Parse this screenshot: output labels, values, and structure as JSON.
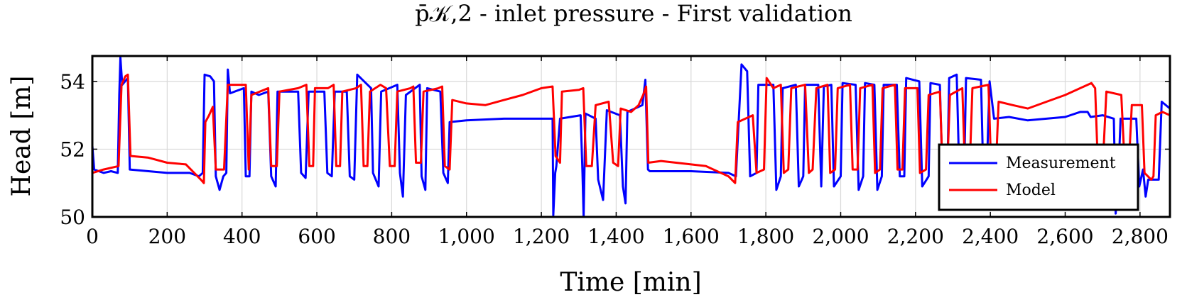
{
  "chart_data": {
    "type": "line",
    "title": "p̄𝒦,2 - inlet pressure - First validation",
    "xlabel": "Time [min]",
    "ylabel": "Head [m]",
    "xlim": [
      0,
      2880
    ],
    "ylim": [
      50,
      54.75
    ],
    "xticks": [
      0,
      200,
      400,
      600,
      800,
      1000,
      1200,
      1400,
      1600,
      1800,
      2000,
      2200,
      2400,
      2600,
      2800
    ],
    "xtick_labels": [
      "0",
      "200",
      "400",
      "600",
      "800",
      "1,000",
      "1,200",
      "1,400",
      "1,600",
      "1,800",
      "2,000",
      "2,200",
      "2,400",
      "2,600",
      "2,800"
    ],
    "yticks": [
      50,
      52,
      54
    ],
    "ytick_labels": [
      "50",
      "52",
      "54"
    ],
    "grid": true,
    "legend_position": "lower-right",
    "series": [
      {
        "name": "Measurement",
        "color": "#0000ff",
        "points": [
          [
            0,
            52.1
          ],
          [
            5,
            51.4
          ],
          [
            30,
            51.3
          ],
          [
            50,
            51.35
          ],
          [
            68,
            51.3
          ],
          [
            72,
            53.6
          ],
          [
            75,
            54.7
          ],
          [
            80,
            53.9
          ],
          [
            95,
            54.1
          ],
          [
            100,
            51.4
          ],
          [
            200,
            51.3
          ],
          [
            260,
            51.3
          ],
          [
            285,
            51.2
          ],
          [
            295,
            51.3
          ],
          [
            300,
            54.2
          ],
          [
            315,
            54.15
          ],
          [
            325,
            54
          ],
          [
            330,
            51.2
          ],
          [
            340,
            50.8
          ],
          [
            350,
            51.2
          ],
          [
            358,
            51.3
          ],
          [
            362,
            54.35
          ],
          [
            368,
            53.65
          ],
          [
            405,
            53.8
          ],
          [
            410,
            51.2
          ],
          [
            420,
            51.2
          ],
          [
            425,
            53.7
          ],
          [
            445,
            53.6
          ],
          [
            470,
            53.7
          ],
          [
            478,
            51.2
          ],
          [
            490,
            50.9
          ],
          [
            495,
            53.7
          ],
          [
            550,
            53.7
          ],
          [
            558,
            51.3
          ],
          [
            570,
            51.15
          ],
          [
            578,
            53.7
          ],
          [
            620,
            53.7
          ],
          [
            628,
            51.3
          ],
          [
            640,
            51.2
          ],
          [
            648,
            53.7
          ],
          [
            680,
            53.7
          ],
          [
            688,
            51.2
          ],
          [
            700,
            51.1
          ],
          [
            708,
            54.2
          ],
          [
            745,
            53.8
          ],
          [
            750,
            51.3
          ],
          [
            765,
            50.9
          ],
          [
            772,
            53.7
          ],
          [
            815,
            53.9
          ],
          [
            822,
            51.3
          ],
          [
            830,
            50.6
          ],
          [
            838,
            53.6
          ],
          [
            875,
            53.9
          ],
          [
            880,
            51.2
          ],
          [
            890,
            50.8
          ],
          [
            895,
            53.8
          ],
          [
            930,
            53.7
          ],
          [
            938,
            51.3
          ],
          [
            950,
            51
          ],
          [
            955,
            52.8
          ],
          [
            1000,
            52.85
          ],
          [
            1100,
            52.9
          ],
          [
            1230,
            52.9
          ],
          [
            1232,
            50.05
          ],
          [
            1237,
            51.3
          ],
          [
            1240,
            51.5
          ],
          [
            1250,
            52.9
          ],
          [
            1305,
            53
          ],
          [
            1310,
            51.3
          ],
          [
            1313,
            50
          ],
          [
            1318,
            53.05
          ],
          [
            1345,
            52.9
          ],
          [
            1352,
            51.1
          ],
          [
            1365,
            50.5
          ],
          [
            1375,
            53.15
          ],
          [
            1410,
            53
          ],
          [
            1418,
            50.9
          ],
          [
            1425,
            50.4
          ],
          [
            1430,
            53.1
          ],
          [
            1470,
            53.3
          ],
          [
            1478,
            54.05
          ],
          [
            1485,
            51.4
          ],
          [
            1490,
            51.35
          ],
          [
            1600,
            51.35
          ],
          [
            1700,
            51.3
          ],
          [
            1720,
            51.2
          ],
          [
            1735,
            54.5
          ],
          [
            1750,
            54.3
          ],
          [
            1758,
            51.2
          ],
          [
            1775,
            51.3
          ],
          [
            1780,
            53.9
          ],
          [
            1820,
            53.9
          ],
          [
            1828,
            50.8
          ],
          [
            1840,
            51.2
          ],
          [
            1845,
            53.8
          ],
          [
            1880,
            53.9
          ],
          [
            1888,
            50.9
          ],
          [
            1900,
            51.2
          ],
          [
            1905,
            53.9
          ],
          [
            1940,
            53.9
          ],
          [
            1948,
            50.9
          ],
          [
            1955,
            53.85
          ],
          [
            1975,
            53.9
          ],
          [
            1982,
            50.9
          ],
          [
            2000,
            51.2
          ],
          [
            2005,
            53.95
          ],
          [
            2040,
            53.9
          ],
          [
            2048,
            50.8
          ],
          [
            2060,
            51.2
          ],
          [
            2065,
            53.95
          ],
          [
            2090,
            53.9
          ],
          [
            2098,
            50.8
          ],
          [
            2110,
            51.2
          ],
          [
            2115,
            53.9
          ],
          [
            2150,
            53.9
          ],
          [
            2158,
            51.2
          ],
          [
            2170,
            51.2
          ],
          [
            2175,
            54.1
          ],
          [
            2210,
            54
          ],
          [
            2218,
            50.9
          ],
          [
            2235,
            51.2
          ],
          [
            2240,
            53.95
          ],
          [
            2265,
            53.9
          ],
          [
            2273,
            50.8
          ],
          [
            2285,
            51.2
          ],
          [
            2290,
            54.1
          ],
          [
            2310,
            54.2
          ],
          [
            2318,
            50.8
          ],
          [
            2330,
            51.2
          ],
          [
            2335,
            54.1
          ],
          [
            2375,
            54.05
          ],
          [
            2382,
            50.8
          ],
          [
            2390,
            51.2
          ],
          [
            2398,
            54
          ],
          [
            2410,
            52.9
          ],
          [
            2450,
            52.95
          ],
          [
            2500,
            52.85
          ],
          [
            2550,
            52.9
          ],
          [
            2600,
            52.95
          ],
          [
            2640,
            53.1
          ],
          [
            2660,
            53.1
          ],
          [
            2668,
            52.95
          ],
          [
            2700,
            53.0
          ],
          [
            2730,
            52.9
          ],
          [
            2735,
            50.1
          ],
          [
            2742,
            51.2
          ],
          [
            2748,
            52.9
          ],
          [
            2790,
            52.9
          ],
          [
            2798,
            50.9
          ],
          [
            2808,
            51.4
          ],
          [
            2815,
            50.6
          ],
          [
            2822,
            51.1
          ],
          [
            2850,
            51.1
          ],
          [
            2858,
            53.4
          ],
          [
            2880,
            53.2
          ]
        ]
      },
      {
        "name": "Model",
        "color": "#ff0000",
        "points": [
          [
            0,
            51.3
          ],
          [
            30,
            51.4
          ],
          [
            70,
            51.5
          ],
          [
            78,
            53.9
          ],
          [
            88,
            54.15
          ],
          [
            95,
            54.2
          ],
          [
            102,
            51.8
          ],
          [
            150,
            51.75
          ],
          [
            200,
            51.6
          ],
          [
            250,
            51.55
          ],
          [
            290,
            51.1
          ],
          [
            298,
            51
          ],
          [
            302,
            52.8
          ],
          [
            312,
            53
          ],
          [
            322,
            53.25
          ],
          [
            330,
            51.4
          ],
          [
            352,
            51.4
          ],
          [
            362,
            53.9
          ],
          [
            410,
            53.9
          ],
          [
            418,
            51.4
          ],
          [
            425,
            53.6
          ],
          [
            470,
            53.8
          ],
          [
            478,
            51.5
          ],
          [
            493,
            51.5
          ],
          [
            500,
            53.7
          ],
          [
            550,
            53.8
          ],
          [
            572,
            53.9
          ],
          [
            580,
            51.5
          ],
          [
            590,
            51.5
          ],
          [
            595,
            53.8
          ],
          [
            630,
            53.8
          ],
          [
            645,
            53.9
          ],
          [
            652,
            51.5
          ],
          [
            662,
            51.5
          ],
          [
            668,
            53.7
          ],
          [
            705,
            53.8
          ],
          [
            718,
            53.9
          ],
          [
            725,
            51.5
          ],
          [
            735,
            51.5
          ],
          [
            742,
            53.7
          ],
          [
            770,
            53.9
          ],
          [
            785,
            53.8
          ],
          [
            795,
            51.5
          ],
          [
            808,
            51.5
          ],
          [
            815,
            53.7
          ],
          [
            850,
            53.8
          ],
          [
            858,
            53.85
          ],
          [
            865,
            51.6
          ],
          [
            878,
            51.6
          ],
          [
            885,
            53.7
          ],
          [
            925,
            53.8
          ],
          [
            935,
            53.85
          ],
          [
            942,
            51.5
          ],
          [
            955,
            51.4
          ],
          [
            962,
            53.45
          ],
          [
            1000,
            53.35
          ],
          [
            1050,
            53.3
          ],
          [
            1100,
            53.45
          ],
          [
            1150,
            53.6
          ],
          [
            1200,
            53.8
          ],
          [
            1230,
            53.85
          ],
          [
            1238,
            51.8
          ],
          [
            1250,
            51.6
          ],
          [
            1255,
            53.7
          ],
          [
            1300,
            53.75
          ],
          [
            1312,
            53.8
          ],
          [
            1320,
            51.5
          ],
          [
            1335,
            51.5
          ],
          [
            1345,
            53.3
          ],
          [
            1380,
            53.4
          ],
          [
            1392,
            51.6
          ],
          [
            1405,
            51.5
          ],
          [
            1412,
            53.2
          ],
          [
            1440,
            53.1
          ],
          [
            1460,
            53.3
          ],
          [
            1472,
            53.6
          ],
          [
            1480,
            53.85
          ],
          [
            1486,
            51.6
          ],
          [
            1520,
            51.65
          ],
          [
            1600,
            51.55
          ],
          [
            1640,
            51.5
          ],
          [
            1650,
            51.45
          ],
          [
            1700,
            51.2
          ],
          [
            1718,
            51.0
          ],
          [
            1725,
            52.8
          ],
          [
            1765,
            53
          ],
          [
            1775,
            51.3
          ],
          [
            1795,
            51.4
          ],
          [
            1802,
            54.1
          ],
          [
            1820,
            53.8
          ],
          [
            1840,
            53.9
          ],
          [
            1848,
            51.3
          ],
          [
            1860,
            51.4
          ],
          [
            1868,
            53.8
          ],
          [
            1905,
            53.9
          ],
          [
            1915,
            51.3
          ],
          [
            1925,
            51.4
          ],
          [
            1935,
            53.8
          ],
          [
            1965,
            53.9
          ],
          [
            1972,
            51.3
          ],
          [
            1985,
            51.4
          ],
          [
            1992,
            53.8
          ],
          [
            2025,
            53.9
          ],
          [
            2032,
            51.4
          ],
          [
            2045,
            51.4
          ],
          [
            2052,
            53.8
          ],
          [
            2085,
            53.9
          ],
          [
            2092,
            51.3
          ],
          [
            2105,
            51.4
          ],
          [
            2112,
            53.8
          ],
          [
            2145,
            53.9
          ],
          [
            2152,
            51.4
          ],
          [
            2165,
            51.4
          ],
          [
            2172,
            53.8
          ],
          [
            2205,
            53.8
          ],
          [
            2212,
            51.3
          ],
          [
            2228,
            51.4
          ],
          [
            2235,
            53.6
          ],
          [
            2265,
            53.7
          ],
          [
            2272,
            51.5
          ],
          [
            2285,
            51.5
          ],
          [
            2292,
            53.6
          ],
          [
            2325,
            53.8
          ],
          [
            2332,
            51.5
          ],
          [
            2345,
            51.5
          ],
          [
            2352,
            53.8
          ],
          [
            2395,
            53.9
          ],
          [
            2402,
            51.5
          ],
          [
            2415,
            51.5
          ],
          [
            2422,
            53.4
          ],
          [
            2460,
            53.3
          ],
          [
            2500,
            53.2
          ],
          [
            2550,
            53.4
          ],
          [
            2600,
            53.6
          ],
          [
            2650,
            53.85
          ],
          [
            2670,
            53.95
          ],
          [
            2680,
            53.8
          ],
          [
            2688,
            51.3
          ],
          [
            2700,
            51.4
          ],
          [
            2710,
            53.7
          ],
          [
            2750,
            53.6
          ],
          [
            2760,
            51.3
          ],
          [
            2770,
            51.5
          ],
          [
            2778,
            53.3
          ],
          [
            2805,
            53.3
          ],
          [
            2812,
            51.3
          ],
          [
            2830,
            51.1
          ],
          [
            2836,
            51.2
          ],
          [
            2842,
            53.0
          ],
          [
            2860,
            53.1
          ],
          [
            2880,
            53.0
          ]
        ]
      }
    ]
  }
}
